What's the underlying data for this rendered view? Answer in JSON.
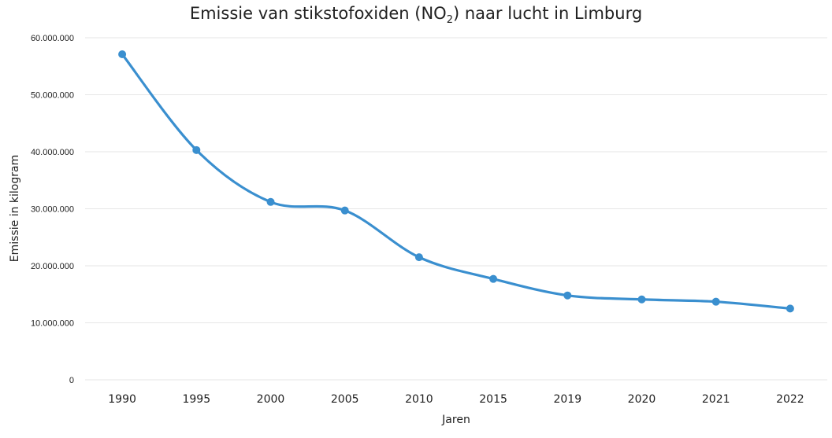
{
  "chart_data": {
    "type": "line",
    "title": {
      "main": "Emissie van stikstofoxiden (NO",
      "subscript": "2",
      "suffix": ") naar lucht in Limburg"
    },
    "xlabel": "Jaren",
    "ylabel": "Emissie in kilogram",
    "categories": [
      "1990",
      "1995",
      "2000",
      "2005",
      "2010",
      "2015",
      "2019",
      "2020",
      "2021",
      "2022"
    ],
    "series": [
      {
        "values": [
          57100000,
          40300000,
          31200000,
          29700000,
          21500000,
          17700000,
          14800000,
          14100000,
          13700000,
          12500000
        ],
        "color": "#3a8fcf"
      }
    ],
    "ylim": [
      0,
      60000000
    ],
    "yticks": [
      {
        "value": 0,
        "label": "0"
      },
      {
        "value": 10000000,
        "label": "10.000.000"
      },
      {
        "value": 20000000,
        "label": "20.000.000"
      },
      {
        "value": 30000000,
        "label": "30.000.000"
      },
      {
        "value": 40000000,
        "label": "40.000.000"
      },
      {
        "value": 50000000,
        "label": "50.000.000"
      },
      {
        "value": 60000000,
        "label": "60.000.000"
      }
    ],
    "grid": true,
    "smooth": true,
    "markers": true,
    "gridcolor": "#e6e6e6"
  }
}
